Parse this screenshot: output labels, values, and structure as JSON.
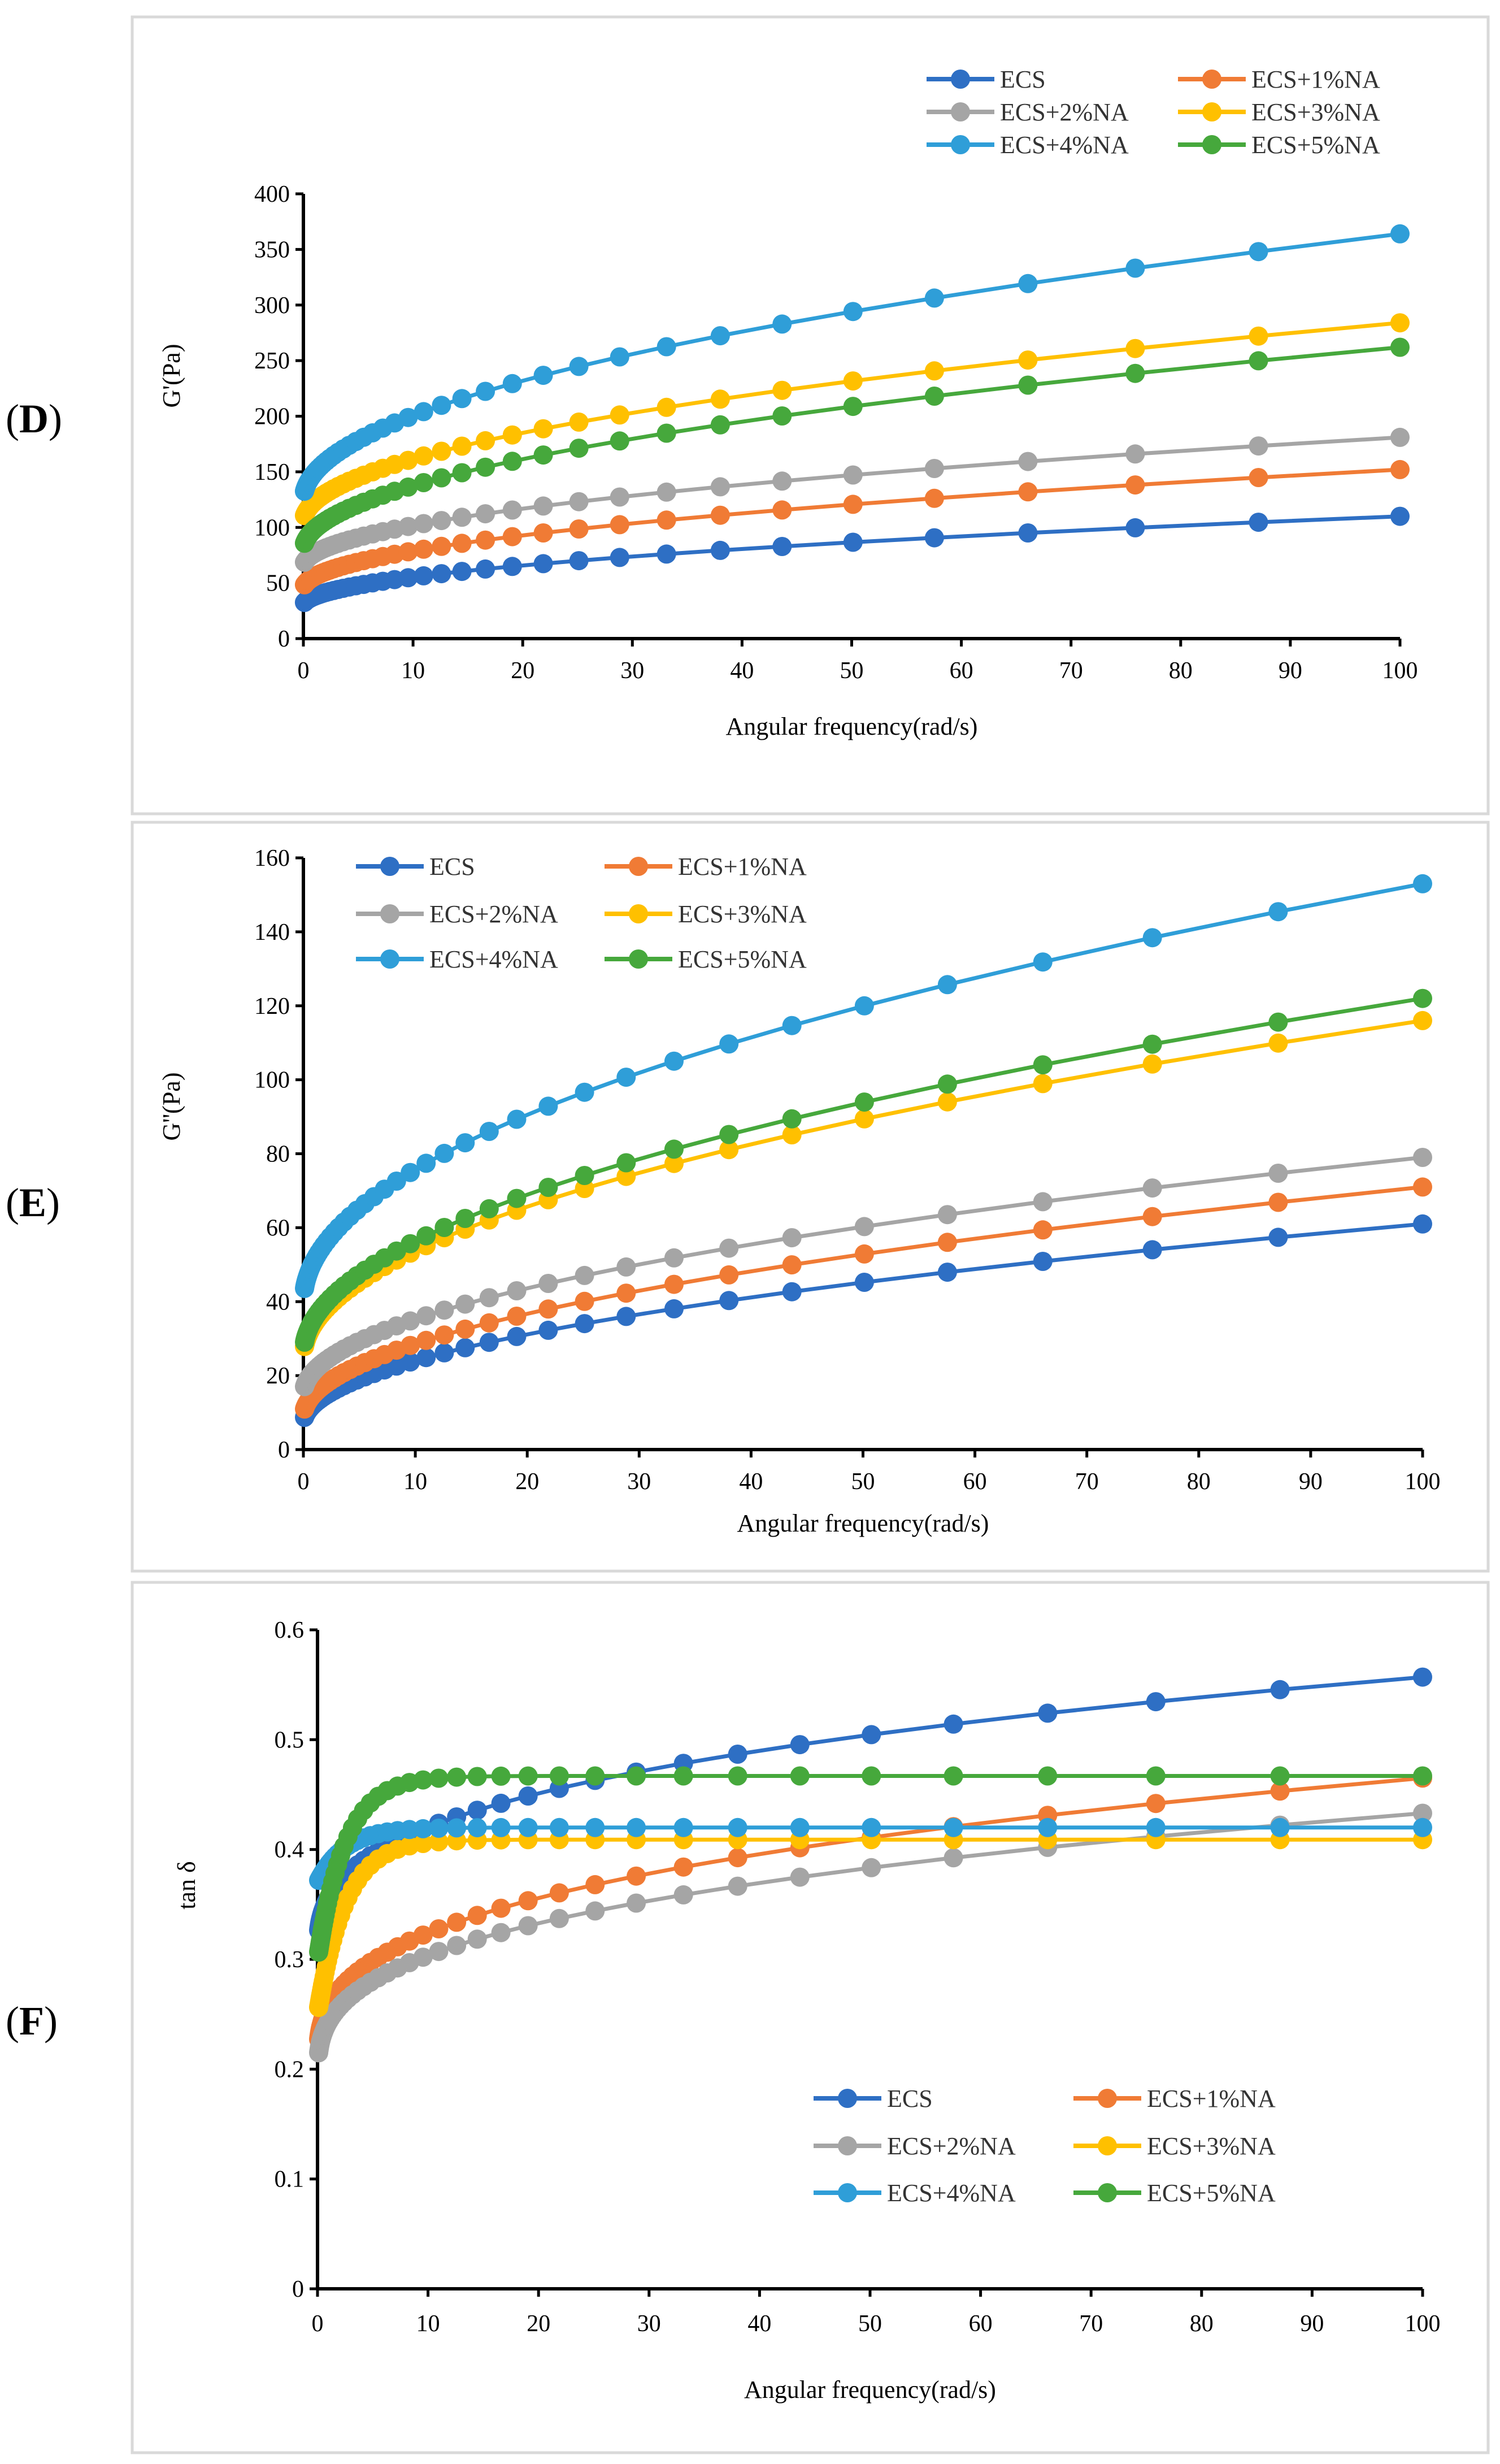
{
  "colors": {
    "ECS": "#2e6fc4",
    "ECS+1%NA": "#f07b35",
    "ECS+2%NA": "#a5a5a5",
    "ECS+3%NA": "#ffc000",
    "ECS+4%NA": "#2f9ed8",
    "ECS+5%NA": "#46a83c"
  },
  "chart_data": [
    {
      "panel": "D",
      "type": "line",
      "title": "",
      "xlabel": "Angular frequency(rad/s)",
      "ylabel": "G'(Pa)",
      "xlim": [
        0,
        100
      ],
      "ylim": [
        0,
        400
      ],
      "xticks": [
        0,
        10,
        20,
        30,
        40,
        50,
        60,
        70,
        80,
        90,
        100
      ],
      "yticks": [
        0,
        50,
        100,
        150,
        200,
        250,
        300,
        350,
        400
      ],
      "legend_position": "top-right",
      "series": [
        {
          "name": "ECS",
          "start": 30,
          "end": 110
        },
        {
          "name": "ECS+1%NA",
          "start": 45,
          "end": 152
        },
        {
          "name": "ECS+2%NA",
          "start": 65,
          "end": 181
        },
        {
          "name": "ECS+3%NA",
          "start": 105,
          "end": 284
        },
        {
          "name": "ECS+4%NA",
          "start": 125,
          "end": 364
        },
        {
          "name": "ECS+5%NA",
          "start": 80,
          "end": 262
        }
      ]
    },
    {
      "panel": "E",
      "type": "line",
      "title": "",
      "xlabel": "Angular frequency(rad/s)",
      "ylabel": "G''(Pa)",
      "xlim": [
        0,
        100
      ],
      "ylim": [
        0,
        160
      ],
      "xticks": [
        0,
        10,
        20,
        30,
        40,
        50,
        60,
        70,
        80,
        90,
        100
      ],
      "yticks": [
        0,
        20,
        40,
        60,
        80,
        100,
        120,
        140,
        160
      ],
      "legend_position": "top-left",
      "series": [
        {
          "name": "ECS",
          "start": 7,
          "end": 61
        },
        {
          "name": "ECS+1%NA",
          "start": 9,
          "end": 71
        },
        {
          "name": "ECS+2%NA",
          "start": 15,
          "end": 79
        },
        {
          "name": "ECS+3%NA",
          "start": 25,
          "end": 116
        },
        {
          "name": "ECS+4%NA",
          "start": 40,
          "end": 153
        },
        {
          "name": "ECS+5%NA",
          "start": 26,
          "end": 122
        }
      ]
    },
    {
      "panel": "F",
      "type": "line",
      "title": "",
      "xlabel": "Angular frequency(rad/s)",
      "ylabel": "tan δ",
      "xlim": [
        0,
        100
      ],
      "ylim": [
        0,
        0.6
      ],
      "xticks": [
        0,
        10,
        20,
        30,
        40,
        50,
        60,
        70,
        80,
        90,
        100
      ],
      "yticks": [
        0,
        0.1,
        0.2,
        0.3,
        0.4,
        0.5,
        0.6
      ],
      "legend_position": "bottom-right",
      "series": [
        {
          "name": "ECS",
          "start": 0.3,
          "end": 0.557,
          "shape": "rising"
        },
        {
          "name": "ECS+1%NA",
          "start": 0.2,
          "end": 0.465,
          "shape": "rising"
        },
        {
          "name": "ECS+2%NA",
          "start": 0.19,
          "end": 0.433,
          "shape": "rising"
        },
        {
          "name": "ECS+3%NA",
          "start": 0.25,
          "end": 0.409,
          "shape": "plateau"
        },
        {
          "name": "ECS+4%NA",
          "start": 0.37,
          "end": 0.42,
          "shape": "plateau"
        },
        {
          "name": "ECS+5%NA",
          "start": 0.3,
          "end": 0.467,
          "shape": "plateau"
        }
      ]
    }
  ],
  "panels": [
    {
      "label": "D",
      "legend": [
        "ECS",
        "ECS+1%NA",
        "ECS+2%NA",
        "ECS+3%NA",
        "ECS+4%NA",
        "ECS+5%NA"
      ]
    },
    {
      "label": "E",
      "legend": [
        "ECS",
        "ECS+1%NA",
        "ECS+2%NA",
        "ECS+3%NA",
        "ECS+4%NA",
        "ECS+5%NA"
      ]
    },
    {
      "label": "F",
      "legend": [
        "ECS",
        "ECS+1%NA",
        "ECS+2%NA",
        "ECS+3%NA",
        "ECS+4%NA",
        "ECS+5%NA"
      ]
    }
  ]
}
